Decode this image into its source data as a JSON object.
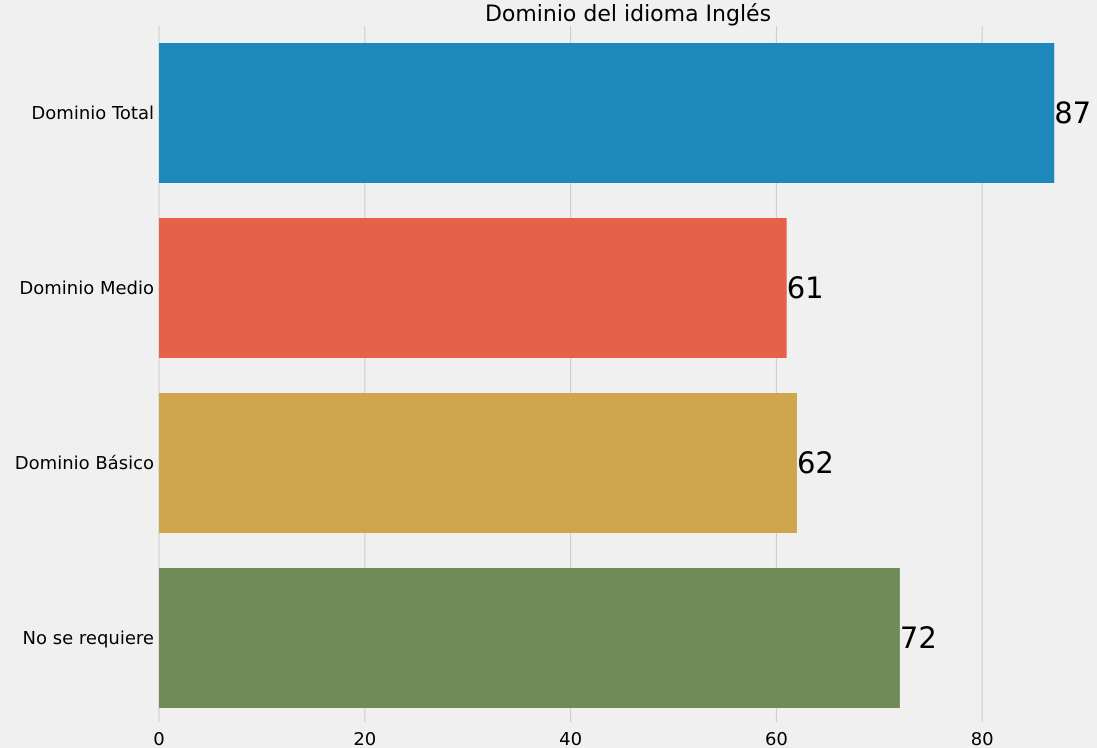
{
  "chart_data": {
    "type": "bar",
    "orientation": "horizontal",
    "title": "Dominio del idioma Inglés",
    "xlabel": "",
    "ylabel": "",
    "categories": [
      "Dominio Total",
      "Dominio Medio",
      "Dominio Básico",
      "No se requiere"
    ],
    "values": [
      87,
      61,
      62,
      72
    ],
    "value_labels": [
      "87",
      "61",
      "62",
      "72"
    ],
    "colors": [
      "#1c88bb",
      "#e5614a",
      "#cfa54d",
      "#6f8b58"
    ],
    "xlim": [
      0,
      90
    ],
    "x_ticks": [
      0,
      20,
      40,
      60,
      80
    ],
    "x_tick_labels": [
      "0",
      "20",
      "40",
      "60",
      "80"
    ],
    "grid": "vertical",
    "legend": "none",
    "background": "#f0f0f0"
  }
}
